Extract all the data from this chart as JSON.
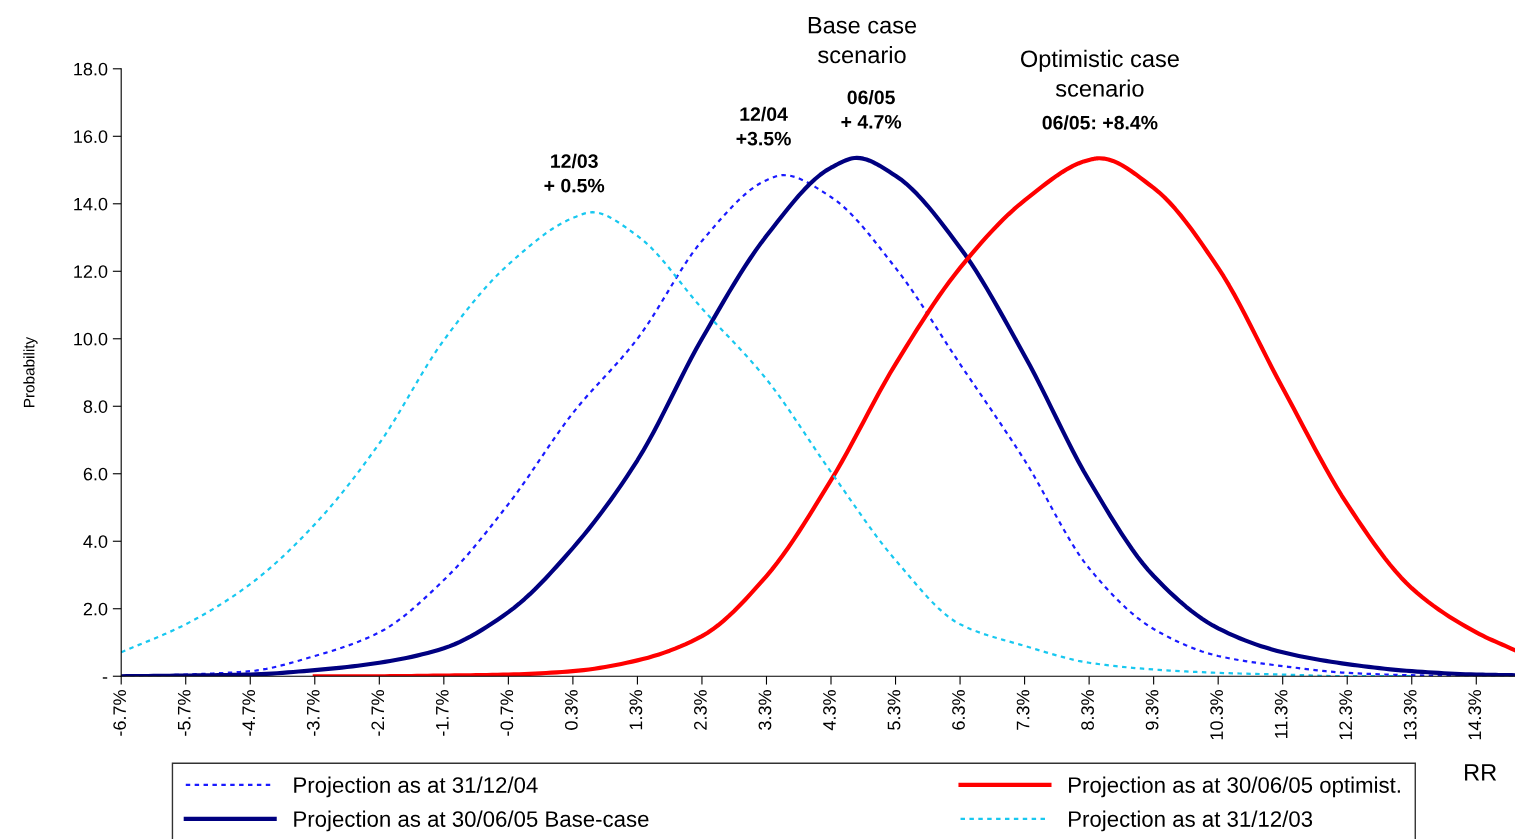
{
  "chart_data": {
    "type": "line",
    "ylabel": "Probability",
    "series": [
      {
        "name": "Projection as at 31/12/04",
        "color": "#1a1aff",
        "line_style": "dotted",
        "x": [
          -6.7,
          -5.7,
          -4.7,
          -3.7,
          -2.7,
          -1.7,
          -0.7,
          0.3,
          1.3,
          2.3,
          3.3,
          3.56,
          4.3,
          5.3,
          6.3,
          7.3,
          8.3,
          9.3,
          10.3,
          11.3,
          12.3,
          13.3,
          14.3,
          14.9
        ],
        "values": [
          0.0,
          0.05,
          0.15,
          0.6,
          1.3,
          2.85,
          5.1,
          7.8,
          10.0,
          12.9,
          14.7,
          14.85,
          14.2,
          12.1,
          9.25,
          6.4,
          3.2,
          1.4,
          0.6,
          0.3,
          0.1,
          0.03,
          0.0,
          0.0
        ]
      },
      {
        "name": "Projection as at 30/06/05 Base-case",
        "color": "#000080",
        "line_style": "solid",
        "x": [
          -6.7,
          -5.7,
          -4.7,
          -3.7,
          -2.7,
          -1.7,
          -0.7,
          0.3,
          1.3,
          2.3,
          3.3,
          4.3,
          4.7,
          5.3,
          6.3,
          7.3,
          8.3,
          9.3,
          10.3,
          11.3,
          12.3,
          13.3,
          14.3,
          14.9
        ],
        "values": [
          0.0,
          0.02,
          0.05,
          0.18,
          0.4,
          0.83,
          1.9,
          3.8,
          6.4,
          10.0,
          13.05,
          15.07,
          15.36,
          14.83,
          12.7,
          9.5,
          5.8,
          2.97,
          1.42,
          0.71,
          0.36,
          0.15,
          0.05,
          0.03
        ]
      },
      {
        "name": "Projection as at 30/06/05 optimist.",
        "color": "#ff0000",
        "line_style": "solid",
        "x": [
          -3.7,
          -2.7,
          -1.7,
          -0.7,
          0.3,
          1.3,
          2.3,
          3.3,
          4.3,
          5.3,
          6.3,
          7.3,
          8.3,
          8.46,
          9.3,
          10.3,
          11.3,
          12.3,
          13.3,
          14.3,
          14.9
        ],
        "values": [
          0.0,
          0.0,
          0.02,
          0.05,
          0.15,
          0.47,
          1.19,
          2.97,
          5.81,
          9.25,
          12.1,
          14.1,
          15.3,
          15.35,
          14.47,
          12.1,
          8.54,
          5.1,
          2.61,
          1.3,
          0.77
        ]
      },
      {
        "name": "Projection as at 31/12/03",
        "color": "#18c8f0",
        "line_style": "dotted",
        "x": [
          -6.7,
          -5.7,
          -4.7,
          -3.7,
          -2.7,
          -1.7,
          -0.7,
          0.3,
          0.6,
          1.3,
          2.3,
          3.3,
          4.3,
          5.3,
          6.3,
          7.3,
          8.3,
          9.3,
          10.3,
          11.3,
          12.3,
          13.3
        ],
        "values": [
          0.71,
          1.54,
          2.73,
          4.5,
          6.9,
          9.96,
          12.2,
          13.58,
          13.75,
          13.05,
          10.9,
          8.8,
          6.05,
          3.44,
          1.54,
          0.9,
          0.4,
          0.2,
          0.1,
          0.05,
          0.0,
          0.0
        ]
      }
    ],
    "xlim": [
      -6.7,
      14.9
    ],
    "xticks": [
      {
        "value": -6.7,
        "label": "-6.7%"
      },
      {
        "value": -5.7,
        "label": "-5.7%"
      },
      {
        "value": -4.7,
        "label": "-4.7%"
      },
      {
        "value": -3.7,
        "label": "-3.7%"
      },
      {
        "value": -2.7,
        "label": "-2.7%"
      },
      {
        "value": -1.7,
        "label": "-1.7%"
      },
      {
        "value": -0.7,
        "label": "-0.7%"
      },
      {
        "value": 0.3,
        "label": "0.3%"
      },
      {
        "value": 1.3,
        "label": "1.3%"
      },
      {
        "value": 2.3,
        "label": "2.3%"
      },
      {
        "value": 3.3,
        "label": "3.3%"
      },
      {
        "value": 4.3,
        "label": "4.3%"
      },
      {
        "value": 5.3,
        "label": "5.3%"
      },
      {
        "value": 6.3,
        "label": "6.3%"
      },
      {
        "value": 7.3,
        "label": "7.3%"
      },
      {
        "value": 8.3,
        "label": "8.3%"
      },
      {
        "value": 9.3,
        "label": "9.3%"
      },
      {
        "value": 10.3,
        "label": "10.3%"
      },
      {
        "value": 11.3,
        "label": "11.3%"
      },
      {
        "value": 12.3,
        "label": "12.3%"
      },
      {
        "value": 13.3,
        "label": "13.3%"
      },
      {
        "value": 14.3,
        "label": "14.3%"
      }
    ],
    "ylim": [
      0,
      18
    ],
    "yticks": [
      {
        "value": 0,
        "label": "-"
      },
      {
        "value": 2,
        "label": "2.0"
      },
      {
        "value": 4,
        "label": "4.0"
      },
      {
        "value": 6,
        "label": "6.0"
      },
      {
        "value": 8,
        "label": "8.0"
      },
      {
        "value": 10,
        "label": "10.0"
      },
      {
        "value": 12,
        "label": "12.0"
      },
      {
        "value": 14,
        "label": "14.0"
      },
      {
        "value": 16,
        "label": "16.0"
      },
      {
        "value": 18,
        "label": "18.0"
      }
    ],
    "annotations": [
      "Base case\nscenario",
      "06/05\n+ 4.7%",
      "12/04\n+3.5%",
      "12/03\n+ 0.5%",
      "Optimistic case\nscenario",
      "06/05: +8.4%",
      "RR"
    ],
    "grid": false,
    "legend": "bottom",
    "marker": "none"
  }
}
